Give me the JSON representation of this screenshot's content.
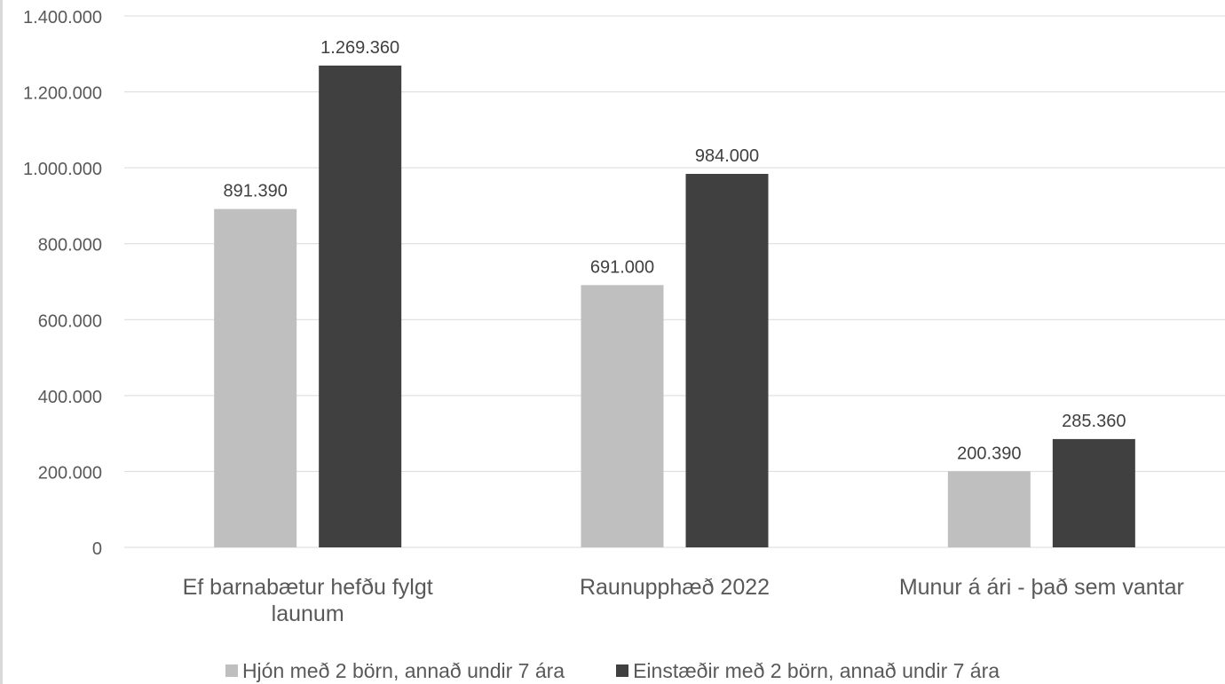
{
  "chart_data": {
    "type": "bar",
    "title": "",
    "xlabel": "",
    "ylabel": "",
    "ylim": [
      0,
      1400000
    ],
    "yticks": [
      0,
      200000,
      400000,
      600000,
      800000,
      1000000,
      1200000,
      1400000
    ],
    "ytick_labels": [
      "0",
      "200.000",
      "400.000",
      "600.000",
      "800.000",
      "1.000.000",
      "1.200.000",
      "1.400.000"
    ],
    "grid": true,
    "legend_position": "bottom",
    "categories": [
      [
        "Ef barnabætur hefðu fylgt",
        "launum"
      ],
      [
        "Raunupphæð  2022"
      ],
      [
        "Munur á ári - það sem vantar"
      ]
    ],
    "series": [
      {
        "name": "Hjón með 2 börn, annað undir 7 ára",
        "color": "#bfbfbf",
        "values": [
          891390,
          691000,
          200390
        ],
        "labels": [
          "891.390",
          "691.000",
          "200.390"
        ]
      },
      {
        "name": "Einstæðir með 2 börn, annað undir 7 ára",
        "color": "#404040",
        "values": [
          1269360,
          984000,
          285360
        ],
        "labels": [
          "1.269.360",
          "984.000",
          "285.360"
        ]
      }
    ]
  }
}
